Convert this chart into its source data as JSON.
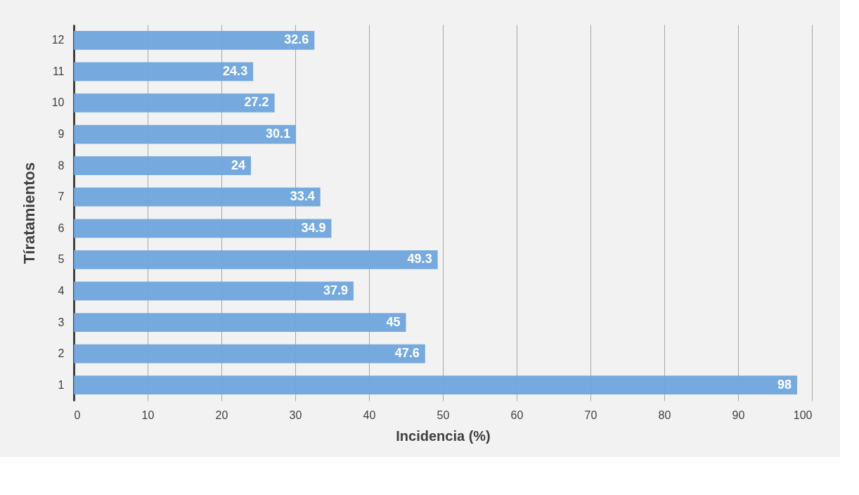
{
  "chart_data": {
    "type": "bar",
    "orientation": "horizontal",
    "xlabel": "Incidencia (%)",
    "ylabel": "Tíratamientos",
    "categories": [
      "12",
      "11",
      "10",
      "9",
      "8",
      "7",
      "6",
      "5",
      "4",
      "3",
      "2",
      "1"
    ],
    "values": [
      32.6,
      24.3,
      27.2,
      30.1,
      24,
      33.4,
      34.9,
      49.3,
      37.9,
      45,
      47.6,
      98
    ],
    "color": "#6fa5dc",
    "xlim": [
      0,
      100
    ],
    "xticks": [
      0,
      10,
      20,
      30,
      40,
      50,
      60,
      70,
      80,
      90,
      100
    ],
    "grid": "x",
    "data_labels": true
  }
}
